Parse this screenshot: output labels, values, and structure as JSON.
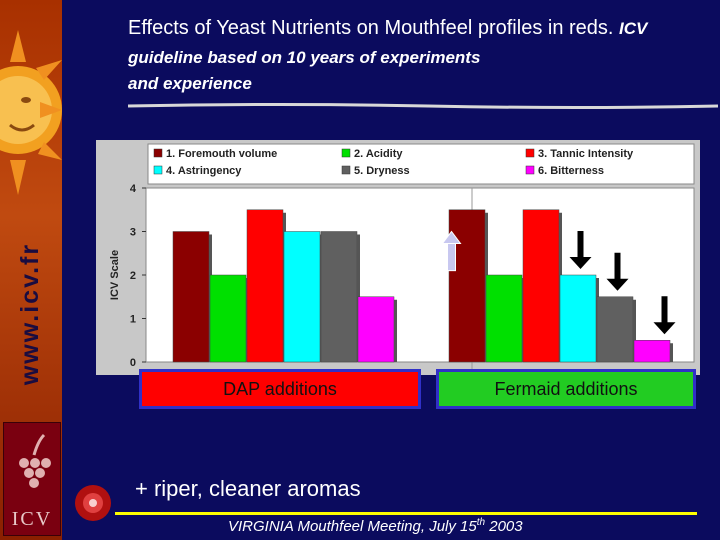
{
  "title": {
    "main": "Effects of Yeast Nutrients on Mouthfeel profiles in reds.",
    "sub": "ICV guideline based on 10 years of experiments",
    "sub2": "and experience"
  },
  "sidebar": {
    "url": "www.icv.fr",
    "logo_text": "ICV"
  },
  "group_labels": {
    "left": "DAP additions",
    "right": "Fermaid additions"
  },
  "bottom_note": "+ riper, cleaner aromas",
  "footer": {
    "prefix": "VIRGINIA Mouthfeel Meeting, July 15",
    "sup": "th",
    "suffix": " 2003"
  },
  "colors": {
    "background": "#0b0b5e",
    "dap_box": "#ff0000",
    "fermaid_box": "#22cc22",
    "arrow_up": "#c8c8f0",
    "arrow_down": "#000000"
  },
  "chart_data": {
    "type": "bar",
    "ylabel": "ICV Scale",
    "ylim": [
      0,
      4
    ],
    "yticks": [
      "0",
      "1",
      "2",
      "3",
      "4"
    ],
    "grid": false,
    "legend_position": "top",
    "groups": [
      "DAP additions",
      "Fermaid additions"
    ],
    "series": [
      {
        "name": "1. Foremouth volume",
        "color": "#8b0000",
        "values": [
          3,
          3.5
        ]
      },
      {
        "name": "2. Acidity",
        "color": "#00e000",
        "values": [
          2,
          2
        ]
      },
      {
        "name": "3. Tannic Intensity",
        "color": "#ff0000",
        "values": [
          3.5,
          3.5
        ]
      },
      {
        "name": "4. Astringency",
        "color": "#00ffff",
        "values": [
          3,
          2
        ]
      },
      {
        "name": "5. Dryness",
        "color": "#606060",
        "values": [
          3,
          1.5
        ]
      },
      {
        "name": "6. Bitterness",
        "color": "#ff00ff",
        "values": [
          1.5,
          0.5
        ]
      }
    ],
    "annotations": [
      {
        "group": 1,
        "series": 0,
        "arrow": "up"
      },
      {
        "group": 1,
        "series": 3,
        "arrow": "down"
      },
      {
        "group": 1,
        "series": 4,
        "arrow": "down"
      },
      {
        "group": 1,
        "series": 5,
        "arrow": "down"
      }
    ]
  }
}
